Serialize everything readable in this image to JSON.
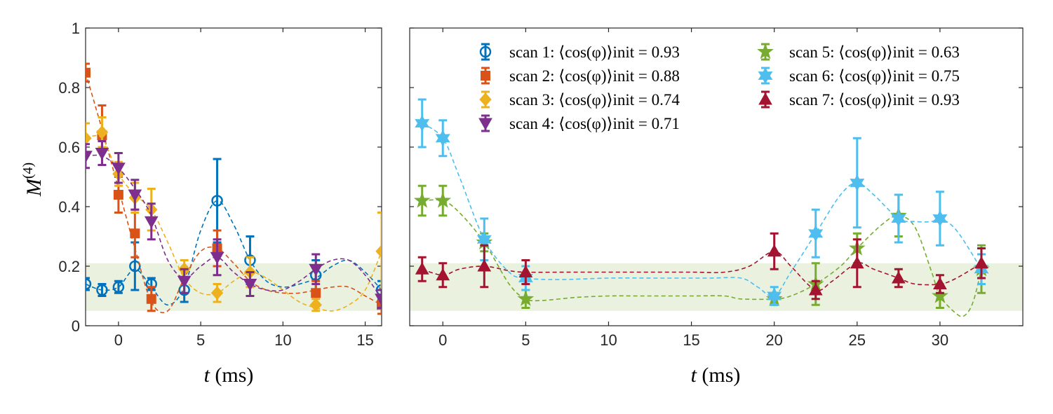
{
  "colors": {
    "scan1": "#0072BD",
    "scan2": "#D95319",
    "scan3": "#EDB120",
    "scan4": "#7E2F8E",
    "scan5": "#77AC30",
    "scan6": "#4DBEEE",
    "scan7": "#A2142F",
    "band": "#EAF2DF"
  },
  "chart_data": [
    {
      "type": "scatter",
      "panel": "left",
      "xlabel": "t (ms)",
      "ylabel": "M(4)",
      "xlim": [
        -2,
        16
      ],
      "ylim": [
        0,
        1
      ],
      "xticks": [
        0,
        5,
        10,
        15
      ],
      "yticks": [
        0,
        0.2,
        0.4,
        0.6,
        0.8,
        1
      ],
      "ytick_labels": [
        "0",
        "0.2",
        "0.4",
        "0.6",
        "0.8",
        "1"
      ],
      "band": [
        0.05,
        0.21
      ],
      "series": [
        {
          "name": "scan 1: ⟨cos(φ)⟩init = 0.93",
          "color_key": "scan1",
          "marker": "circle",
          "x": [
            -2,
            -1,
            0,
            1,
            2,
            4,
            6,
            8,
            12,
            16
          ],
          "y": [
            0.14,
            0.12,
            0.13,
            0.2,
            0.14,
            0.12,
            0.42,
            0.22,
            0.17,
            0.12
          ],
          "err": [
            0.02,
            0.02,
            0.02,
            0.08,
            0.02,
            0.04,
            0.14,
            0.08,
            0.05,
            0.03
          ],
          "fit": [
            [
              -2,
              0.14
            ],
            [
              -1,
              0.12
            ],
            [
              0,
              0.13
            ],
            [
              1,
              0.19
            ],
            [
              2,
              0.13
            ],
            [
              3,
              0.07
            ],
            [
              4,
              0.13
            ],
            [
              5,
              0.32
            ],
            [
              6,
              0.42
            ],
            [
              7,
              0.34
            ],
            [
              8,
              0.22
            ],
            [
              9,
              0.15
            ],
            [
              10,
              0.13
            ],
            [
              11,
              0.14
            ],
            [
              12,
              0.16
            ],
            [
              13,
              0.2
            ],
            [
              14,
              0.22
            ],
            [
              15,
              0.18
            ],
            [
              16,
              0.12
            ]
          ]
        },
        {
          "name": "scan 2: ⟨cos(φ)⟩init = 0.88",
          "color_key": "scan2",
          "marker": "square",
          "x": [
            -2,
            -1,
            0,
            1,
            2,
            6,
            12,
            16
          ],
          "y": [
            0.85,
            0.64,
            0.44,
            0.31,
            0.09,
            0.26,
            0.11,
            0.07
          ],
          "err": [
            0.03,
            0.1,
            0.06,
            0.08,
            0.04,
            0.06,
            0.04,
            0.03
          ],
          "fit": [
            [
              -2,
              0.85
            ],
            [
              -1,
              0.66
            ],
            [
              0,
              0.46
            ],
            [
              1,
              0.26
            ],
            [
              2,
              0.08
            ],
            [
              3,
              0.05
            ],
            [
              4,
              0.16
            ],
            [
              5,
              0.25
            ],
            [
              6,
              0.26
            ],
            [
              7,
              0.21
            ],
            [
              8,
              0.15
            ],
            [
              9,
              0.12
            ],
            [
              10,
              0.11
            ],
            [
              11,
              0.11
            ],
            [
              12,
              0.12
            ],
            [
              13,
              0.13
            ],
            [
              14,
              0.13
            ],
            [
              15,
              0.1
            ],
            [
              16,
              0.07
            ]
          ]
        },
        {
          "name": "scan 3: ⟨cos(φ)⟩init = 0.74",
          "color_key": "scan3",
          "marker": "diamond",
          "x": [
            -2,
            -1,
            0,
            1,
            2,
            4,
            6,
            8,
            12,
            16
          ],
          "y": [
            0.63,
            0.65,
            0.51,
            0.43,
            0.39,
            0.19,
            0.11,
            0.18,
            0.07,
            0.25
          ],
          "err": [
            0.05,
            0.05,
            0.04,
            0.05,
            0.07,
            0.03,
            0.03,
            0.05,
            0.02,
            0.13
          ],
          "fit": [
            [
              -2,
              0.63
            ],
            [
              -1,
              0.63
            ],
            [
              0,
              0.51
            ],
            [
              1,
              0.44
            ],
            [
              2,
              0.39
            ],
            [
              3,
              0.28
            ],
            [
              4,
              0.16
            ],
            [
              5,
              0.11
            ],
            [
              6,
              0.11
            ],
            [
              7,
              0.15
            ],
            [
              8,
              0.18
            ],
            [
              9,
              0.16
            ],
            [
              10,
              0.12
            ],
            [
              11,
              0.08
            ],
            [
              12,
              0.06
            ],
            [
              13,
              0.05
            ],
            [
              14,
              0.07
            ],
            [
              15,
              0.12
            ],
            [
              16,
              0.25
            ]
          ]
        },
        {
          "name": "scan 4: ⟨cos(φ)⟩init = 0.71",
          "color_key": "scan4",
          "marker": "triangle-down",
          "x": [
            -2,
            -1,
            0,
            1,
            2,
            4,
            6,
            8,
            12,
            16
          ],
          "y": [
            0.57,
            0.58,
            0.53,
            0.44,
            0.35,
            0.15,
            0.23,
            0.14,
            0.19,
            0.09
          ],
          "err": [
            0.04,
            0.04,
            0.05,
            0.05,
            0.06,
            0.04,
            0.06,
            0.04,
            0.05,
            0.03
          ],
          "fit": [
            [
              -2,
              0.57
            ],
            [
              -1,
              0.57
            ],
            [
              0,
              0.53
            ],
            [
              1,
              0.46
            ],
            [
              2,
              0.37
            ],
            [
              3,
              0.22
            ],
            [
              4,
              0.16
            ],
            [
              5,
              0.2
            ],
            [
              6,
              0.23
            ],
            [
              7,
              0.18
            ],
            [
              8,
              0.14
            ],
            [
              9,
              0.12
            ],
            [
              10,
              0.12
            ],
            [
              11,
              0.15
            ],
            [
              12,
              0.19
            ],
            [
              13,
              0.22
            ],
            [
              14,
              0.22
            ],
            [
              15,
              0.17
            ],
            [
              16,
              0.09
            ]
          ]
        }
      ]
    },
    {
      "type": "scatter",
      "panel": "right",
      "xlabel": "t (ms)",
      "xlim": [
        -2,
        35
      ],
      "ylim": [
        0,
        1
      ],
      "xticks": [
        0,
        5,
        10,
        15,
        20,
        25,
        30
      ],
      "band": [
        0.05,
        0.21
      ],
      "series": [
        {
          "name": "scan 5: ⟨cos(φ)⟩init = 0.63",
          "color_key": "scan5",
          "marker": "pentagram",
          "x": [
            -1.25,
            0,
            2.5,
            5,
            20,
            22.5,
            25,
            27.5,
            30,
            32.5
          ],
          "y": [
            0.42,
            0.42,
            0.28,
            0.09,
            0.09,
            0.14,
            0.26,
            0.37,
            0.1,
            0.19
          ],
          "err": [
            0.05,
            0.05,
            0.03,
            0.03,
            0.02,
            0.07,
            0.05,
            0.07,
            0.04,
            0.08
          ],
          "fit": [
            [
              -1.25,
              0.42
            ],
            [
              0,
              0.42
            ],
            [
              1,
              0.38
            ],
            [
              2.5,
              0.28
            ],
            [
              4,
              0.14
            ],
            [
              5,
              0.09
            ],
            [
              6,
              0.085
            ],
            [
              8,
              0.095
            ],
            [
              10,
              0.1
            ],
            [
              12,
              0.1
            ],
            [
              15,
              0.1
            ],
            [
              17,
              0.1
            ],
            [
              18,
              0.09
            ],
            [
              20,
              0.09
            ],
            [
              21,
              0.1
            ],
            [
              22.5,
              0.14
            ],
            [
              24,
              0.2
            ],
            [
              25,
              0.26
            ],
            [
              26.5,
              0.34
            ],
            [
              27.5,
              0.37
            ],
            [
              28.5,
              0.33
            ],
            [
              29.5,
              0.18
            ],
            [
              30,
              0.1
            ],
            [
              31,
              0.04
            ],
            [
              31.5,
              0.035
            ],
            [
              32,
              0.08
            ],
            [
              32.5,
              0.19
            ]
          ]
        },
        {
          "name": "scan 6: ⟨cos(φ)⟩init = 0.75",
          "color_key": "scan6",
          "marker": "hexagram",
          "x": [
            -1.25,
            0,
            2.5,
            5,
            20,
            22.5,
            25,
            27.5,
            30,
            32.5
          ],
          "y": [
            0.68,
            0.63,
            0.29,
            0.16,
            0.1,
            0.31,
            0.48,
            0.36,
            0.36,
            0.19
          ],
          "err": [
            0.08,
            0.06,
            0.07,
            0.04,
            0.03,
            0.08,
            0.15,
            0.08,
            0.09,
            0.05
          ],
          "fit": [
            [
              -1.25,
              0.68
            ],
            [
              0,
              0.63
            ],
            [
              1,
              0.5
            ],
            [
              2.5,
              0.29
            ],
            [
              4,
              0.18
            ],
            [
              5,
              0.16
            ],
            [
              7,
              0.155
            ],
            [
              10,
              0.16
            ],
            [
              13,
              0.16
            ],
            [
              16,
              0.16
            ],
            [
              18,
              0.16
            ],
            [
              19,
              0.13
            ],
            [
              20,
              0.1
            ],
            [
              21,
              0.18
            ],
            [
              22.5,
              0.31
            ],
            [
              24,
              0.44
            ],
            [
              25,
              0.48
            ],
            [
              26,
              0.44
            ],
            [
              27.5,
              0.36
            ],
            [
              28.5,
              0.35
            ],
            [
              29.5,
              0.35
            ],
            [
              30,
              0.36
            ],
            [
              31,
              0.32
            ],
            [
              32.5,
              0.19
            ]
          ]
        },
        {
          "name": "scan 7: ⟨cos(φ)⟩init = 0.93",
          "color_key": "scan7",
          "marker": "triangle-up",
          "x": [
            -1.25,
            0,
            2.5,
            5,
            20,
            22.5,
            25,
            27.5,
            30,
            32.5
          ],
          "y": [
            0.19,
            0.17,
            0.2,
            0.18,
            0.25,
            0.12,
            0.21,
            0.16,
            0.14,
            0.21
          ],
          "err": [
            0.04,
            0.04,
            0.07,
            0.04,
            0.06,
            0.03,
            0.08,
            0.03,
            0.03,
            0.05
          ],
          "fit": [
            [
              -1.25,
              0.19
            ],
            [
              0,
              0.17
            ],
            [
              1,
              0.19
            ],
            [
              2.5,
              0.2
            ],
            [
              4,
              0.185
            ],
            [
              5,
              0.18
            ],
            [
              8,
              0.18
            ],
            [
              12,
              0.18
            ],
            [
              15,
              0.18
            ],
            [
              17,
              0.18
            ],
            [
              18.5,
              0.2
            ],
            [
              20,
              0.25
            ],
            [
              21,
              0.2
            ],
            [
              22.5,
              0.12
            ],
            [
              23.5,
              0.15
            ],
            [
              25,
              0.21
            ],
            [
              26,
              0.19
            ],
            [
              27.5,
              0.16
            ],
            [
              28.5,
              0.14
            ],
            [
              30,
              0.14
            ],
            [
              31,
              0.16
            ],
            [
              32.5,
              0.21
            ]
          ]
        }
      ]
    }
  ]
}
